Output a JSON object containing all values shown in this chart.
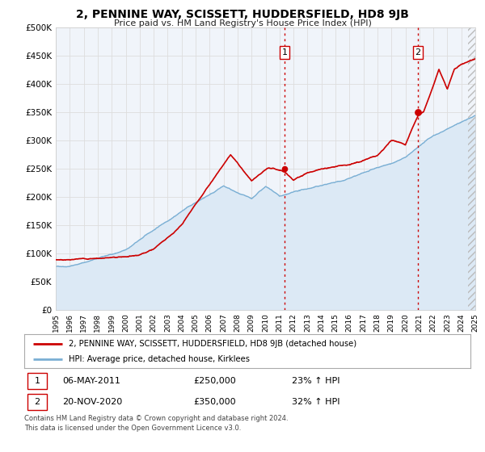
{
  "title": "2, PENNINE WAY, SCISSETT, HUDDERSFIELD, HD8 9JB",
  "subtitle": "Price paid vs. HM Land Registry's House Price Index (HPI)",
  "xlim": [
    1995,
    2025
  ],
  "ylim": [
    0,
    500000
  ],
  "yticks": [
    0,
    50000,
    100000,
    150000,
    200000,
    250000,
    300000,
    350000,
    400000,
    450000,
    500000
  ],
  "ytick_labels": [
    "£0",
    "£50K",
    "£100K",
    "£150K",
    "£200K",
    "£250K",
    "£300K",
    "£350K",
    "£400K",
    "£450K",
    "£500K"
  ],
  "xticks": [
    1995,
    1996,
    1997,
    1998,
    1999,
    2000,
    2001,
    2002,
    2003,
    2004,
    2005,
    2006,
    2007,
    2008,
    2009,
    2010,
    2011,
    2012,
    2013,
    2014,
    2015,
    2016,
    2017,
    2018,
    2019,
    2020,
    2021,
    2022,
    2023,
    2024,
    2025
  ],
  "property_color": "#cc0000",
  "hpi_color": "#7aafd4",
  "hpi_fill_color": "#dce9f5",
  "vline_color": "#cc0000",
  "grid_color": "#dddddd",
  "sale1_x": 2011.35,
  "sale1_y": 250000,
  "sale1_label": "1",
  "sale1_date": "06-MAY-2011",
  "sale1_price": "£250,000",
  "sale1_hpi": "23% ↑ HPI",
  "sale2_x": 2020.9,
  "sale2_y": 350000,
  "sale2_label": "2",
  "sale2_date": "20-NOV-2020",
  "sale2_price": "£350,000",
  "sale2_hpi": "32% ↑ HPI",
  "legend_line1": "2, PENNINE WAY, SCISSETT, HUDDERSFIELD, HD8 9JB (detached house)",
  "legend_line2": "HPI: Average price, detached house, Kirklees",
  "footnote": "Contains HM Land Registry data © Crown copyright and database right 2024.\nThis data is licensed under the Open Government Licence v3.0.",
  "background_color": "#ffffff",
  "plot_bg_color": "#f0f4fa"
}
